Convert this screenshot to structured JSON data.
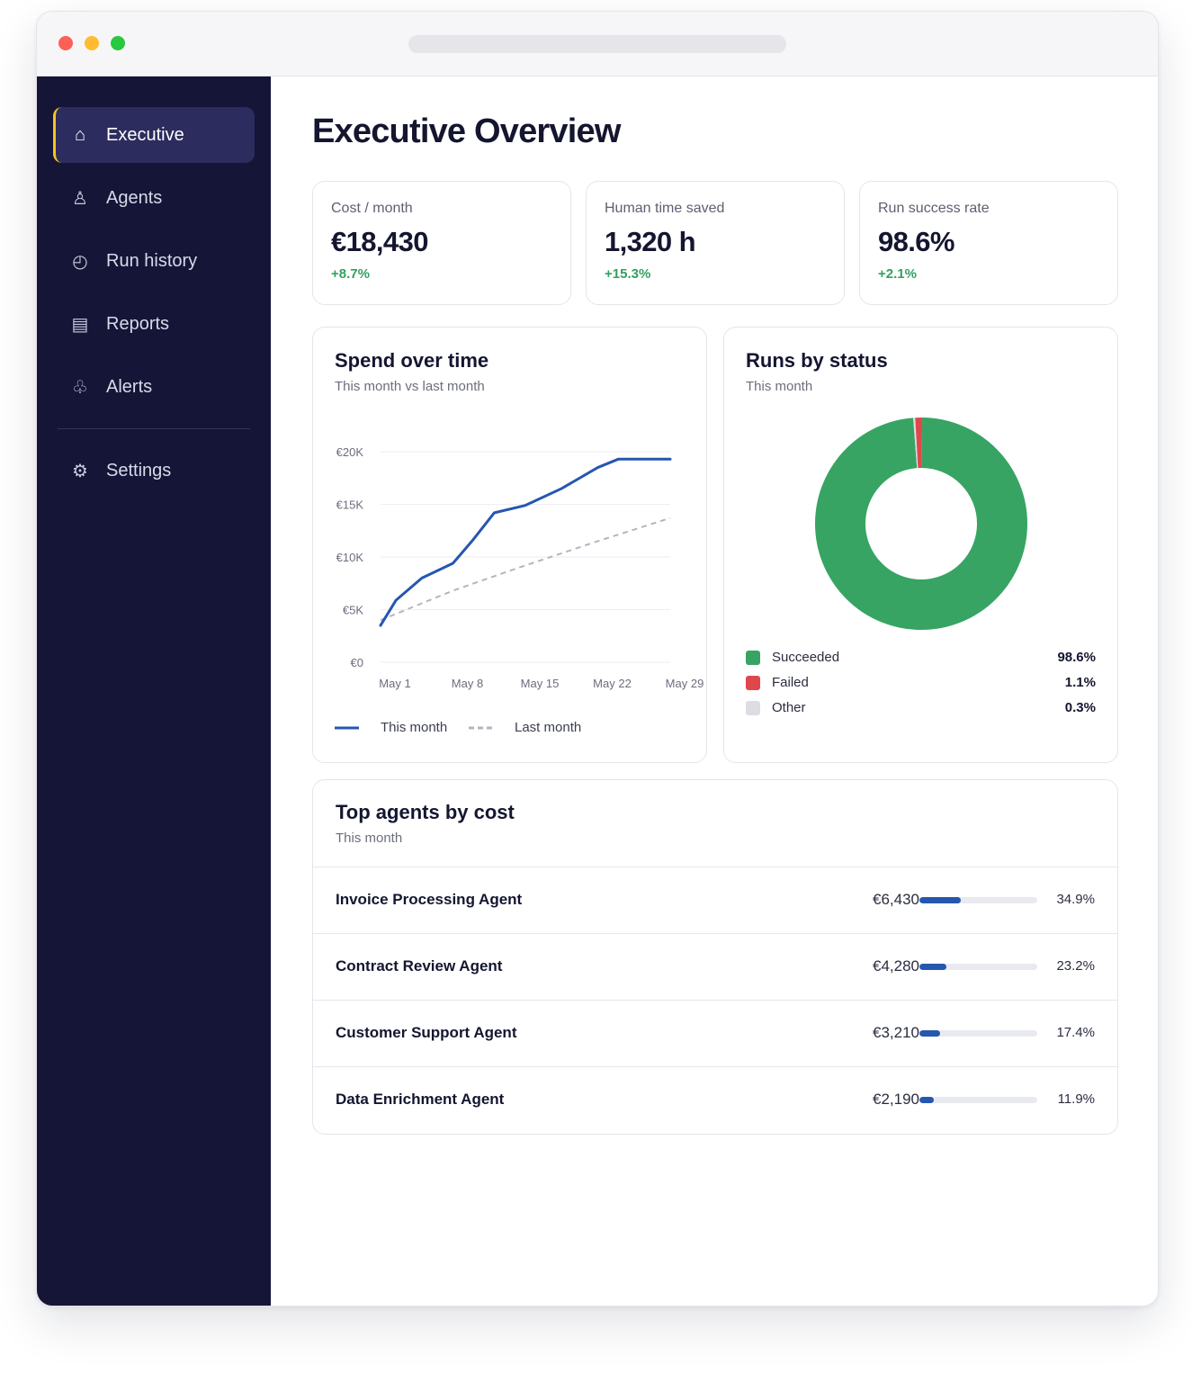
{
  "window": {
    "buttons": [
      "close",
      "minimize",
      "zoom"
    ]
  },
  "sidebar": {
    "items": [
      {
        "label": "Executive",
        "icon": "home-icon",
        "glyph": "⌂",
        "active": true
      },
      {
        "label": "Agents",
        "icon": "agent-icon",
        "glyph": "♙",
        "active": false
      },
      {
        "label": "Run history",
        "icon": "clock-icon",
        "glyph": "◴",
        "active": false
      },
      {
        "label": "Reports",
        "icon": "report-icon",
        "glyph": "▤",
        "active": false
      },
      {
        "label": "Alerts",
        "icon": "bell-icon",
        "glyph": "♧",
        "active": false
      }
    ],
    "settings": {
      "label": "Settings",
      "icon": "gear-icon",
      "glyph": "⚙"
    },
    "colors": {
      "background": "#151538",
      "active_bg": "#2c2c5e",
      "active_accent": "#f5c518"
    }
  },
  "page": {
    "title": "Executive Overview"
  },
  "kpis": [
    {
      "label": "Cost / month",
      "value": "€18,430",
      "delta": "+8.7%"
    },
    {
      "label": "Human time saved",
      "value": "1,320 h",
      "delta": "+15.3%"
    },
    {
      "label": "Run success rate",
      "value": "98.6%",
      "delta": "+2.1%"
    }
  ],
  "spend": {
    "title": "Spend over time",
    "subtitle": "This month vs last month",
    "legend": {
      "this_month": "This month",
      "last_month": "Last month"
    }
  },
  "runs": {
    "title": "Runs by status",
    "subtitle": "This month",
    "legend": [
      {
        "label": "Succeeded",
        "pct": "98.6%",
        "color": "#37a463"
      },
      {
        "label": "Failed",
        "pct": "1.1%",
        "color": "#e0474c"
      },
      {
        "label": "Other",
        "pct": "0.3%",
        "color": "#dcdde2"
      }
    ]
  },
  "top_agents": {
    "title": "Top agents by cost",
    "subtitle": "This month",
    "rows": [
      {
        "name": "Invoice Processing Agent",
        "cost": "€6,430",
        "share": "34.9%",
        "share_value": 34.9
      },
      {
        "name": "Contract Review Agent",
        "cost": "€4,280",
        "share": "23.2%",
        "share_value": 23.2
      },
      {
        "name": "Customer Support Agent",
        "cost": "€3,210",
        "share": "17.4%",
        "share_value": 17.4
      },
      {
        "name": "Data Enrichment Agent",
        "cost": "€2,190",
        "share": "11.9%",
        "share_value": 11.9
      }
    ]
  },
  "chart_data": [
    {
      "type": "line",
      "title": "Spend over time",
      "subtitle": "This month vs last month",
      "x": [
        1,
        3,
        5,
        8,
        10,
        12,
        15,
        19,
        22,
        24,
        29
      ],
      "x_ticks": [
        "May 1",
        "May 8",
        "May 15",
        "May 22",
        "May 29"
      ],
      "x_tick_values": [
        1,
        8,
        15,
        22,
        29
      ],
      "y_ticks": [
        "€0",
        "€5K",
        "€10K",
        "€15K",
        "€20K"
      ],
      "y_tick_values": [
        0,
        5000,
        10000,
        15000,
        20000
      ],
      "ylim": [
        0,
        20000
      ],
      "xlim": [
        1,
        29
      ],
      "grid": true,
      "legend": "bottom-left",
      "series": [
        {
          "name": "This month",
          "style": "solid",
          "color": "#2557b0",
          "x": [
            1,
            2.5,
            5,
            8,
            10,
            12,
            15,
            18.5,
            22,
            24,
            29
          ],
          "values": [
            3500,
            5900,
            8000,
            9400,
            11700,
            14200,
            14900,
            16500,
            18500,
            19300,
            19300
          ]
        },
        {
          "name": "Last month",
          "style": "dashed",
          "color": "#b3b5bf",
          "x": [
            1,
            8,
            15,
            22,
            29
          ],
          "values": [
            4000,
            6800,
            9200,
            11500,
            13700
          ]
        }
      ]
    },
    {
      "type": "pie",
      "title": "Runs by status",
      "subtitle": "This month",
      "donut": true,
      "categories": [
        "Succeeded",
        "Failed",
        "Other"
      ],
      "values": [
        98.6,
        1.1,
        0.3
      ],
      "colors": [
        "#37a463",
        "#e0474c",
        "#dcdde2"
      ],
      "legend": "bottom"
    }
  ]
}
